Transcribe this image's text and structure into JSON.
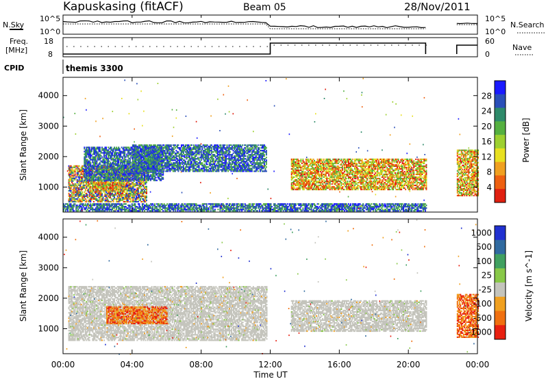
{
  "header": {
    "station": "Kapuskasing (fitACF)",
    "beam": "Beam 05",
    "date": "28/Nov/2011"
  },
  "noise_panel": {
    "left_label": "N.Sky",
    "left_ticks": [
      "10^5",
      "10^0"
    ],
    "right_ticks": [
      "10^5",
      "10^0"
    ],
    "right_label": "N.Search"
  },
  "freq_panel": {
    "left_label_line1": "Freq.",
    "left_label_line2": "[MHz]",
    "left_ticks": [
      "18",
      "8"
    ],
    "right_ticks": [
      "60",
      "0"
    ],
    "right_label": "Nave"
  },
  "cpid": {
    "label": "CPID",
    "value": "themis 3300"
  },
  "time_axis": {
    "ticks": [
      "00:00",
      "04:00",
      "08:00",
      "12:00",
      "16:00",
      "20:00",
      "00:00"
    ],
    "label": "Time UT"
  },
  "chart_data": [
    {
      "type": "heatmap",
      "name": "power",
      "ylabel": "Slant Range [km]",
      "yticks": [
        "1000",
        "2000",
        "3000",
        "4000"
      ],
      "ylim": [
        180,
        4600
      ],
      "xlim_hours": [
        0,
        24
      ],
      "colorbar": {
        "label": "Power [dB]",
        "ticks": [
          "4",
          "8",
          "12",
          "16",
          "20",
          "24",
          "28"
        ],
        "colors": [
          "#1a1aff",
          "#2a4fb8",
          "#2e8a6a",
          "#55b040",
          "#9dd030",
          "#e8e020",
          "#f0a020",
          "#ee6010",
          "#e02010"
        ]
      },
      "regions": [
        {
          "t0": 0.3,
          "t1": 4.8,
          "r0": 500,
          "r1": 1700,
          "level": "mixed"
        },
        {
          "t0": 1.2,
          "t1": 5.8,
          "r0": 1200,
          "r1": 2300,
          "level": "low"
        },
        {
          "t0": 4.0,
          "t1": 11.8,
          "r0": 1500,
          "r1": 2400,
          "level": "low"
        },
        {
          "t0": 1.5,
          "t1": 3.6,
          "r0": 850,
          "r1": 1150,
          "level": "high"
        },
        {
          "t0": 13.2,
          "t1": 21.0,
          "r0": 900,
          "r1": 1900,
          "level": "high"
        },
        {
          "t0": 22.8,
          "t1": 24.0,
          "r0": 700,
          "r1": 2200,
          "level": "high"
        },
        {
          "t0": 0.0,
          "t1": 21.0,
          "r0": 200,
          "r1": 450,
          "level": "low"
        }
      ]
    },
    {
      "type": "heatmap",
      "name": "velocity",
      "ylabel": "Slant Range [km]",
      "yticks": [
        "1000",
        "2000",
        "3000",
        "4000"
      ],
      "ylim": [
        180,
        4600
      ],
      "xlim_hours": [
        0,
        24
      ],
      "colorbar": {
        "label": "Velocity [m s^-1]",
        "ticks": [
          "1000",
          "500",
          "100",
          "25",
          "-25",
          "-100",
          "-500",
          "-1000"
        ],
        "colors": [
          "#2030d0",
          "#306aa0",
          "#40a060",
          "#88c848",
          "#c4c4bc",
          "#f0a020",
          "#f07010",
          "#e82010"
        ]
      },
      "regions": [
        {
          "t0": 0.3,
          "t1": 11.8,
          "r0": 600,
          "r1": 2400,
          "level": "ground-scatter"
        },
        {
          "t0": 13.2,
          "t1": 21.0,
          "r0": 900,
          "r1": 1900,
          "level": "ground-scatter"
        },
        {
          "t0": 2.5,
          "t1": 6.0,
          "r0": 1150,
          "r1": 1700,
          "level": "negative"
        },
        {
          "t0": 22.8,
          "t1": 24.0,
          "r0": 700,
          "r1": 2100,
          "level": "negative"
        }
      ]
    }
  ]
}
